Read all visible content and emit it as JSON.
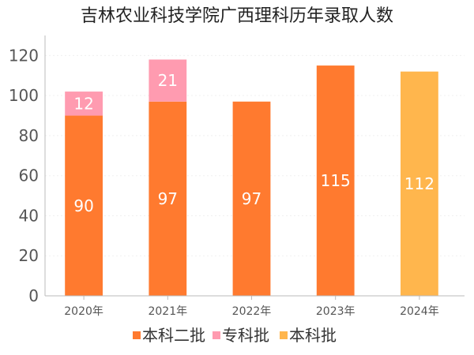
{
  "chart_data": {
    "type": "bar",
    "stacked": true,
    "title": "吉林农业科技学院广西理科历年录取人数",
    "categories": [
      "2020年",
      "2021年",
      "2022年",
      "2023年",
      "2024年"
    ],
    "ylim": [
      0,
      130
    ],
    "yticks": [
      0,
      20,
      40,
      60,
      80,
      100,
      120
    ],
    "grid": true,
    "legend_position": "bottom",
    "series": [
      {
        "name": "本科二批",
        "color": "#ff7a2f",
        "values": [
          90,
          97,
          97,
          115,
          null
        ]
      },
      {
        "name": "专科批",
        "color": "#ff9bb0",
        "values": [
          12,
          21,
          null,
          null,
          null
        ]
      },
      {
        "name": "本科批",
        "color": "#ffb64d",
        "values": [
          null,
          null,
          null,
          null,
          112
        ]
      }
    ]
  }
}
